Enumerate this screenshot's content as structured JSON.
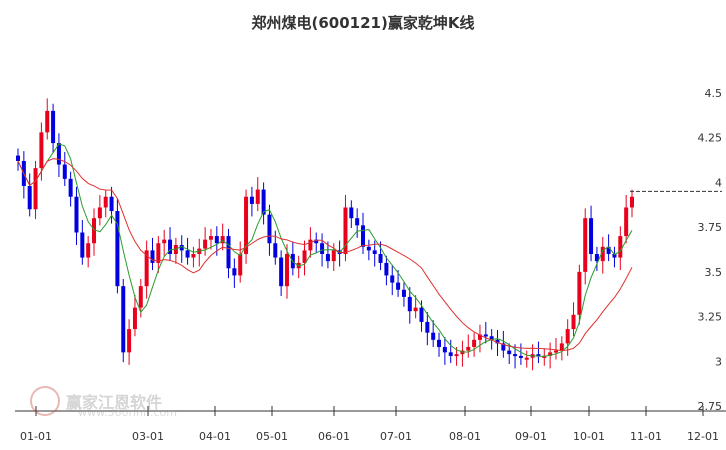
{
  "chart_data": {
    "type": "candlestick",
    "title": "郑州煤电(600121)赢家乾坤K线",
    "ylim": [
      2.75,
      4.5
    ],
    "y_ticks": [
      "2.75",
      "3",
      "3.25",
      "3.5",
      "3.75",
      "4",
      "4.25",
      "4.5"
    ],
    "x_ticks": [
      "01-01",
      "03-01",
      "04-01",
      "05-01",
      "06-01",
      "07-01",
      "08-01",
      "09-01",
      "10-01",
      "11-01",
      "12-01"
    ],
    "grid": false,
    "up_color": "#e8001c",
    "down_color": "#0000e0",
    "ma_short_color": "#2a9d2a",
    "ma_long_color": "#e03030",
    "reference_line": 3.95,
    "closes": [
      4.12,
      3.98,
      3.85,
      4.08,
      4.28,
      4.4,
      4.22,
      4.1,
      4.02,
      3.92,
      3.72,
      3.58,
      3.66,
      3.8,
      3.86,
      3.92,
      3.84,
      3.42,
      3.05,
      3.18,
      3.3,
      3.42,
      3.62,
      3.55,
      3.66,
      3.68,
      3.6,
      3.65,
      3.62,
      3.58,
      3.6,
      3.63,
      3.68,
      3.7,
      3.66,
      3.7,
      3.52,
      3.48,
      3.6,
      3.92,
      3.88,
      3.96,
      3.82,
      3.66,
      3.58,
      3.42,
      3.6,
      3.52,
      3.55,
      3.62,
      3.68,
      3.66,
      3.6,
      3.56,
      3.62,
      3.6,
      3.86,
      3.8,
      3.76,
      3.64,
      3.62,
      3.6,
      3.55,
      3.48,
      3.44,
      3.4,
      3.36,
      3.28,
      3.3,
      3.22,
      3.16,
      3.12,
      3.08,
      3.05,
      3.03,
      3.04,
      3.06,
      3.08,
      3.12,
      3.15,
      3.14,
      3.12,
      3.1,
      3.06,
      3.04,
      3.03,
      3.02,
      3.02,
      3.04,
      3.03,
      3.03,
      3.05,
      3.06,
      3.1,
      3.18,
      3.26,
      3.5,
      3.8,
      3.6,
      3.56,
      3.64,
      3.6,
      3.58,
      3.7,
      3.86,
      3.92
    ]
  },
  "watermark": {
    "brand": "赢家江恩软件",
    "url": "www.360rinn.com"
  }
}
